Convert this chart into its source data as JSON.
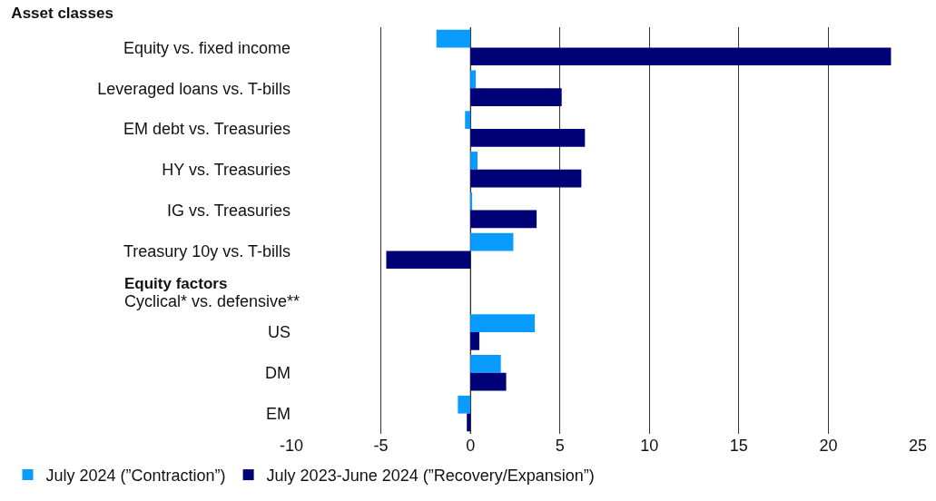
{
  "chart_data": {
    "type": "bar",
    "orientation": "horizontal",
    "title": "Asset classes",
    "categories": [
      "Equity vs. fixed income",
      "Leveraged loans vs. T-bills",
      "EM debt vs. Treasuries",
      "HY vs. Treasuries",
      "IG vs. Treasuries",
      "Treasury 10y vs. T-bills",
      null,
      "US",
      "DM",
      "EM"
    ],
    "series": [
      {
        "name": "July 2024 (”Contraction”)",
        "color": "#0a9bff",
        "values": [
          -1.9,
          0.3,
          -0.3,
          0.4,
          0.1,
          2.4,
          null,
          3.6,
          1.7,
          -0.7
        ]
      },
      {
        "name": "July 2023-June 2024 (”Recovery/Expansion”)",
        "color": "#000077",
        "values": [
          23.5,
          5.1,
          6.4,
          6.2,
          3.7,
          -4.7,
          null,
          0.5,
          2.0,
          -0.2
        ]
      }
    ],
    "annotations": [
      "Equity factors",
      "Cyclical* vs. defensive**"
    ],
    "xlim": [
      -10,
      25
    ],
    "xticks": [
      -10,
      -5,
      0,
      5,
      10,
      15,
      20,
      25
    ],
    "grid": "x",
    "legend": "bottom"
  }
}
